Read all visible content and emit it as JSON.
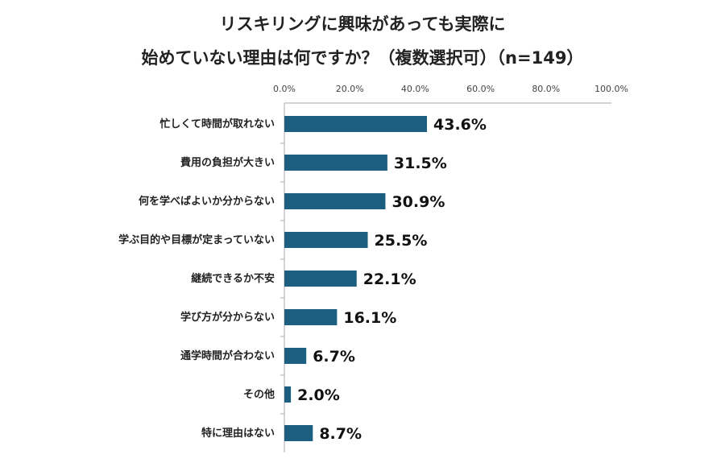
{
  "chart_data": {
    "type": "bar",
    "orientation": "horizontal",
    "title_line1": "リスキリングに興味があっても実際に",
    "title_line2": "始めていない理由は何ですか？（複数選択可）（n=149）",
    "xlim": [
      0,
      100
    ],
    "ticks": [
      "0.0%",
      "20.0%",
      "40.0%",
      "60.0%",
      "80.0%",
      "100.0%"
    ],
    "tick_values": [
      0,
      20,
      40,
      60,
      80,
      100
    ],
    "categories": [
      "忙しくて時間が取れない",
      "費用の負担が大きい",
      "何を学べばよいか分からない",
      "学ぶ目的や目標が定まっていない",
      "継続できるか不安",
      "学び方が分からない",
      "通学時間が合わない",
      "その他",
      "特に理由はない"
    ],
    "values": [
      43.6,
      31.5,
      30.9,
      25.5,
      22.1,
      16.1,
      6.7,
      2.0,
      8.7
    ],
    "data_labels": [
      "43.6%",
      "31.5%",
      "30.9%",
      "25.5%",
      "22.1%",
      "16.1%",
      "6.7%",
      "2.0%",
      "8.7%"
    ],
    "bar_color": "#1b5e80",
    "grid": false
  }
}
